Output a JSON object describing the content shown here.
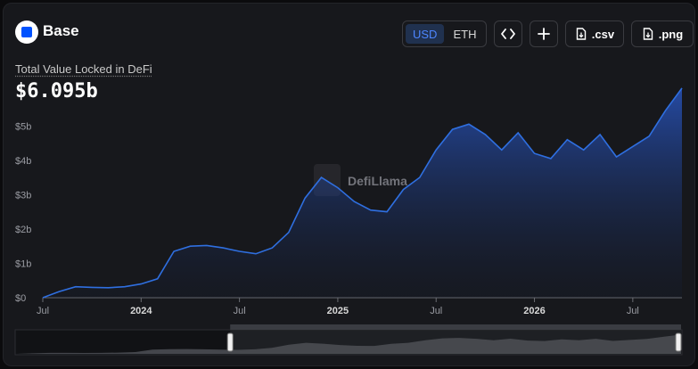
{
  "header": {
    "chain_name": "Base"
  },
  "toolbar": {
    "currency_options": [
      "USD",
      "ETH"
    ],
    "currency_selected": "USD",
    "embed_icon": "code-icon",
    "add_icon": "plus-icon",
    "csv_label": ".csv",
    "png_label": ".png",
    "download_icon": "file-download-icon"
  },
  "metric": {
    "label": "Total Value Locked in DeFi",
    "value": "$6.095b"
  },
  "watermark": "DefiLlama",
  "colors": {
    "line": "#2f6fe0",
    "accent": "#0052ff",
    "background": "#17181c"
  },
  "chart_data": {
    "type": "area",
    "title": "",
    "xlabel": "",
    "ylabel": "",
    "x_ticks": [
      "Jul",
      "2024",
      "Jul",
      "2025",
      "Jul",
      "2026",
      "Jul"
    ],
    "y_ticks": [
      "$0",
      "$1b",
      "$2b",
      "$3b",
      "$4b",
      "$5b"
    ],
    "ylim_b": [
      0,
      5.2
    ],
    "grid": false,
    "series": [
      {
        "name": "",
        "unit": "USD billions",
        "points": [
          [
            "2023-07",
            0.0
          ],
          [
            "2023-08",
            0.18
          ],
          [
            "2023-09",
            0.32
          ],
          [
            "2023-10",
            0.3
          ],
          [
            "2023-11",
            0.29
          ],
          [
            "2023-12",
            0.32
          ],
          [
            "2024-01",
            0.4
          ],
          [
            "2024-02",
            0.55
          ],
          [
            "2024-03",
            1.35
          ],
          [
            "2024-04",
            1.5
          ],
          [
            "2024-05",
            1.52
          ],
          [
            "2024-06",
            1.45
          ],
          [
            "2024-07",
            1.35
          ],
          [
            "2024-08",
            1.28
          ],
          [
            "2024-09",
            1.45
          ],
          [
            "2024-10",
            1.9
          ],
          [
            "2024-11",
            2.9
          ],
          [
            "2024-12",
            3.5
          ],
          [
            "2025-01",
            3.2
          ],
          [
            "2025-02",
            2.8
          ],
          [
            "2025-03",
            2.55
          ],
          [
            "2025-04",
            2.5
          ],
          [
            "2025-05",
            3.15
          ],
          [
            "2025-06",
            3.5
          ],
          [
            "2025-07",
            4.3
          ],
          [
            "2025-08",
            4.9
          ],
          [
            "2025-09",
            5.05
          ],
          [
            "2025-10",
            4.75
          ],
          [
            "2025-11",
            4.3
          ],
          [
            "2025-12",
            4.8
          ],
          [
            "2026-01",
            4.2
          ],
          [
            "2026-02",
            4.05
          ],
          [
            "2026-03",
            4.6
          ],
          [
            "2026-04",
            4.3
          ],
          [
            "2026-05",
            4.75
          ],
          [
            "2026-06",
            4.1
          ],
          [
            "2026-07",
            4.4
          ],
          [
            "2026-08",
            4.7
          ],
          [
            "2026-09",
            5.45
          ],
          [
            "2026-10",
            6.1
          ]
        ]
      }
    ],
    "range_selector": {
      "start_fraction": 0.322,
      "end_fraction": 1.0
    }
  }
}
